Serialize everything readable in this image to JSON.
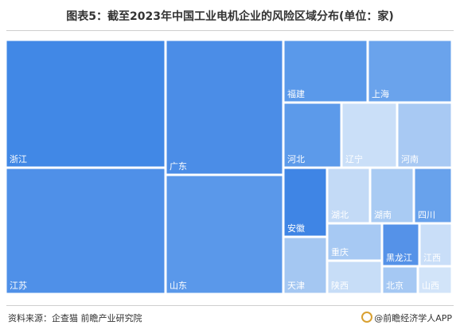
{
  "title": "图表5：截至2023年中国工业电机企业的风险区域分布(单位：家)",
  "source": "资料来源：企查猫 前瞻产业研究院",
  "brand": "@前瞻经济学人APP",
  "chart_data": {
    "type": "treemap",
    "title": "图表5：截至2023年中国工业电机企业的风险区域分布(单位：家)",
    "unit": "家",
    "values_estimated_relative": true,
    "items": [
      {
        "name": "浙江",
        "value": 309,
        "color": "#4188e6"
      },
      {
        "name": "江苏",
        "value": 296,
        "color": "#4f90e8"
      },
      {
        "name": "广东",
        "value": 239,
        "color": "#4b8de7"
      },
      {
        "name": "山东",
        "value": 261,
        "color": "#5a98ea"
      },
      {
        "name": "福建",
        "value": 65,
        "color": "#5a99ea"
      },
      {
        "name": "上海",
        "value": 62,
        "color": "#6aa3ec"
      },
      {
        "name": "河北",
        "value": 58,
        "color": "#5c9aea"
      },
      {
        "name": "辽宁",
        "value": 55,
        "color": "#cadff8"
      },
      {
        "name": "河南",
        "value": 53,
        "color": "#a8c9f3"
      },
      {
        "name": "安徽",
        "value": 42,
        "color": "#3f85e5"
      },
      {
        "name": "湖北",
        "value": 36,
        "color": "#c3daf6"
      },
      {
        "name": "湖南",
        "value": 36,
        "color": "#a9cbf3"
      },
      {
        "name": "四川",
        "value": 35,
        "color": "#68a2ec"
      },
      {
        "name": "天津",
        "value": 38,
        "color": "#a4c7f2"
      },
      {
        "name": "重庆",
        "value": 24,
        "color": "#a7c9f3"
      },
      {
        "name": "黑龙江",
        "value": 18,
        "color": "#5592e8"
      },
      {
        "name": "江西",
        "value": 17,
        "color": "#c9def8"
      },
      {
        "name": "陕西",
        "value": 20,
        "color": "#c7ddf7"
      },
      {
        "name": "北京",
        "value": 14,
        "color": "#a5c8f3"
      },
      {
        "name": "山西",
        "value": 14,
        "color": "#d2e4f9"
      }
    ]
  }
}
